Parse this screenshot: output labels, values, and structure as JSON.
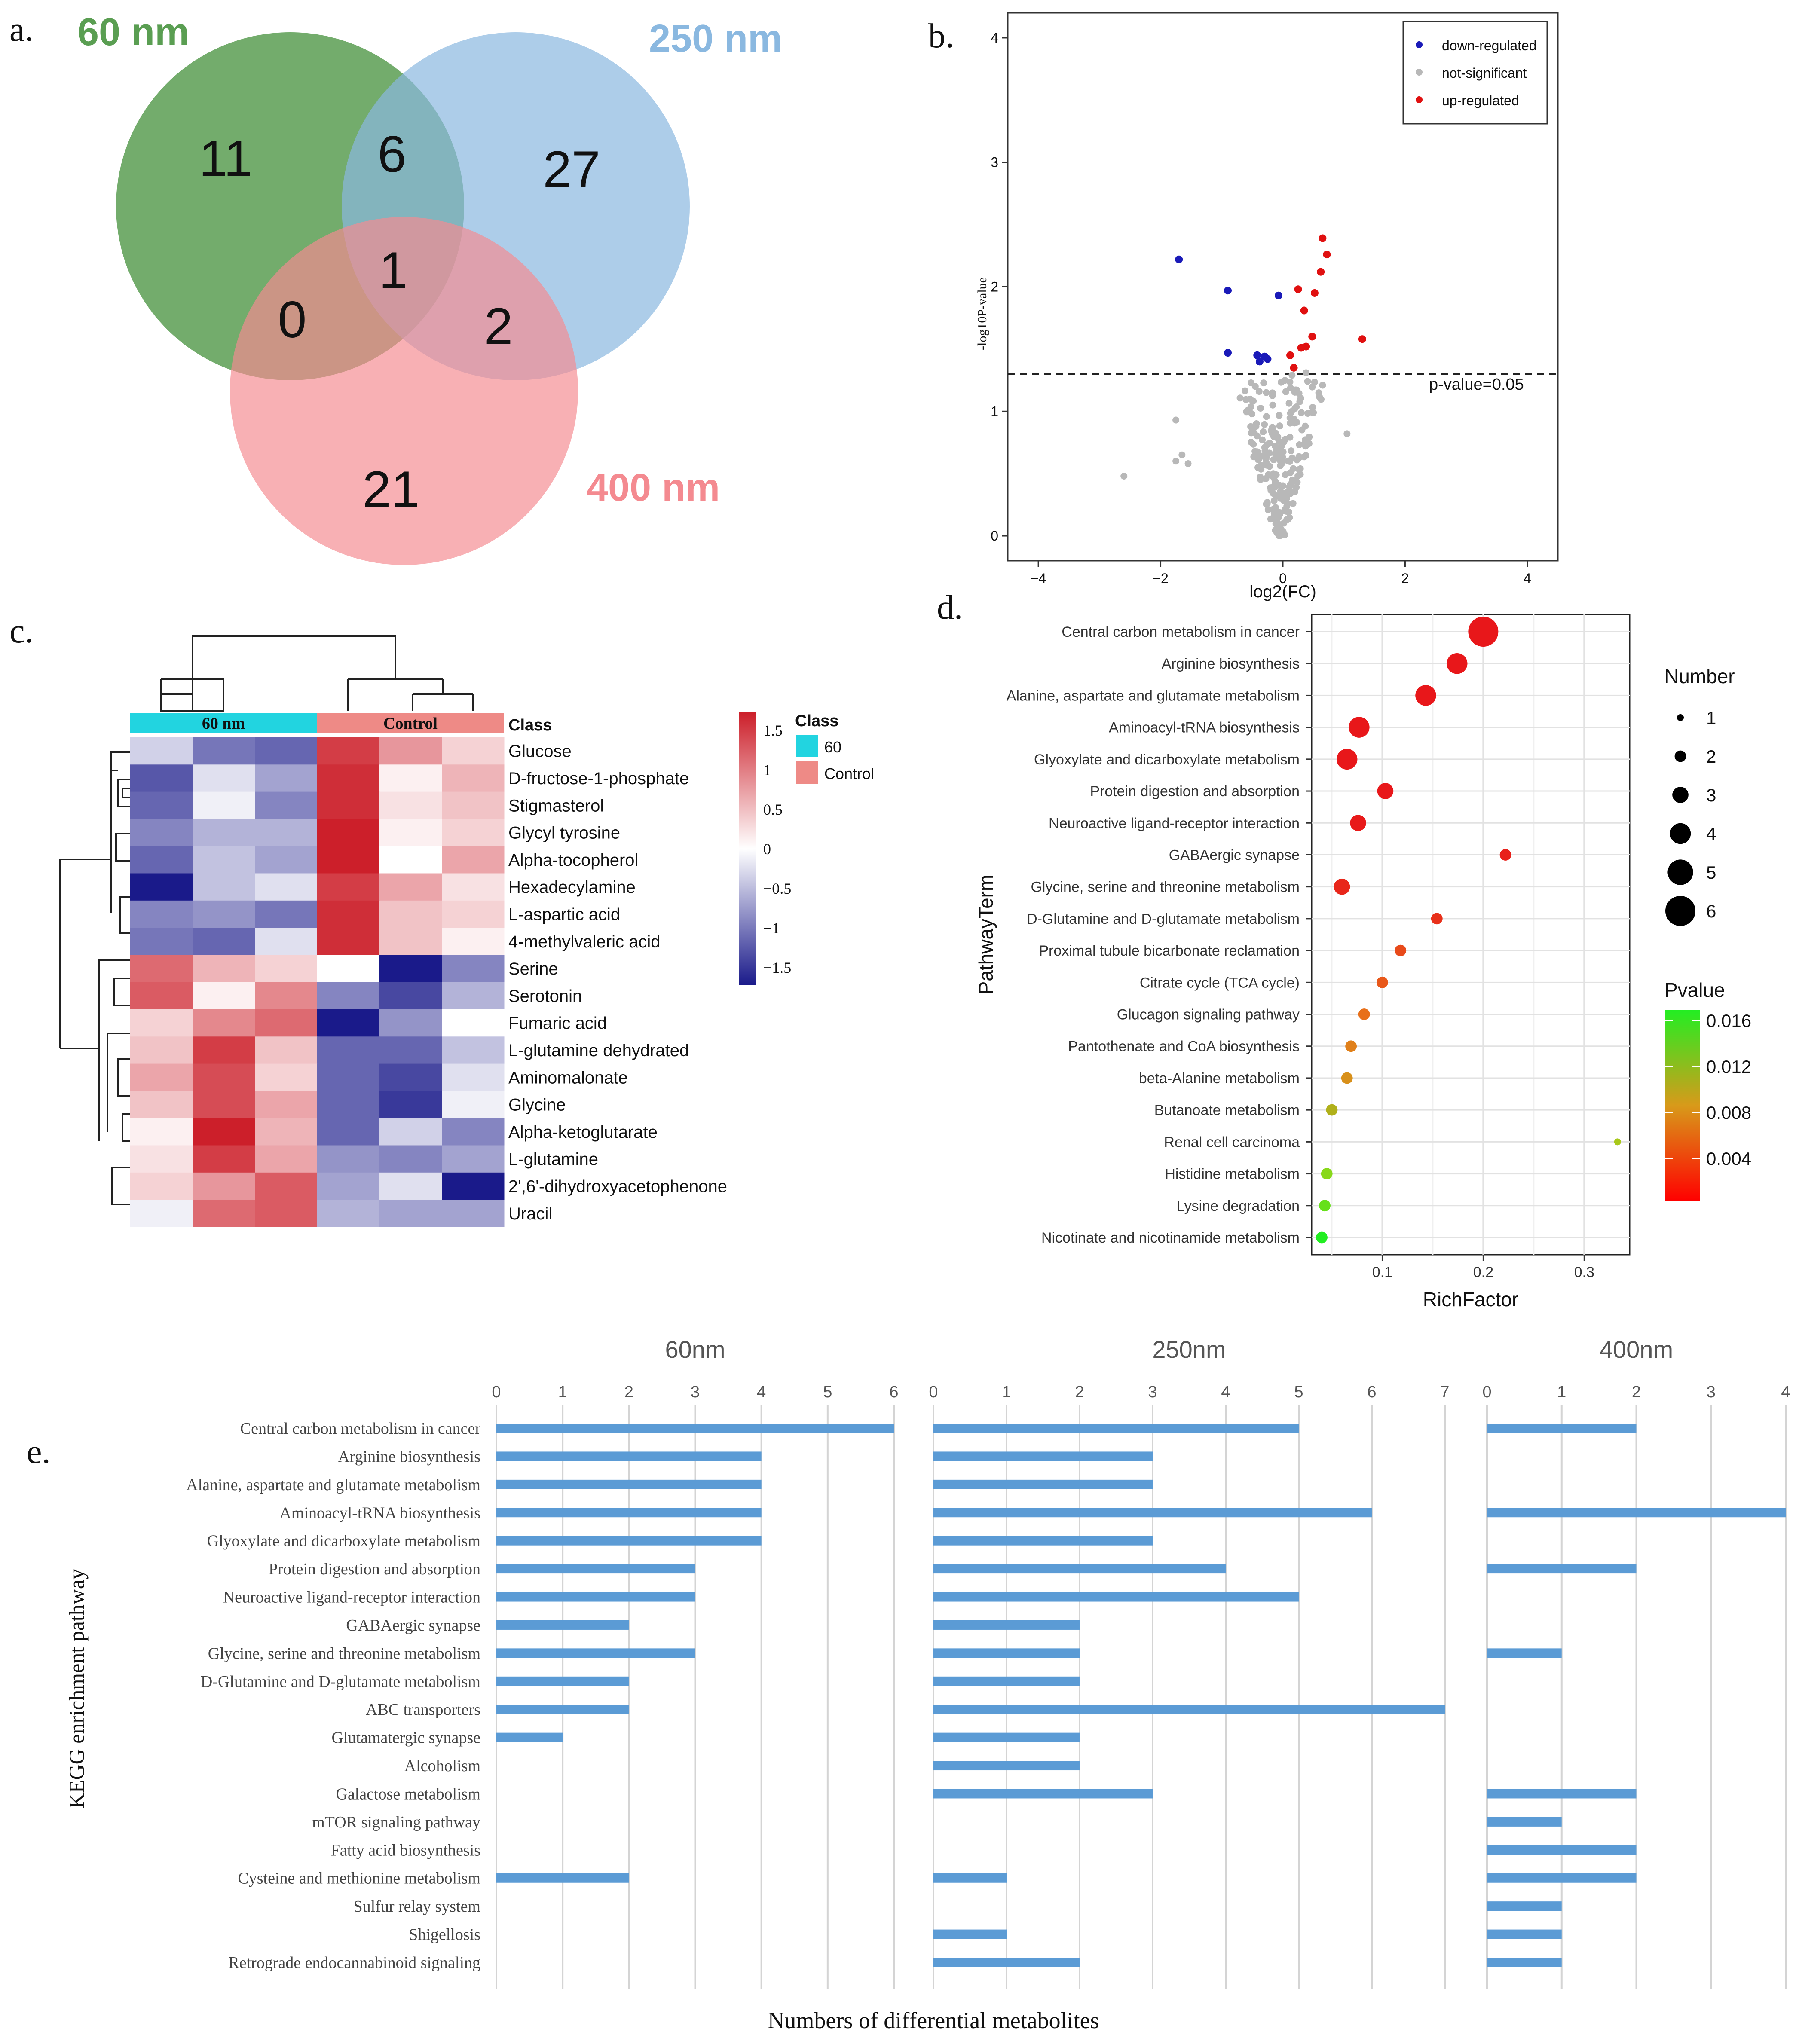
{
  "panels": {
    "a": {
      "label": "a.",
      "sets": [
        {
          "name": "60 nm",
          "color": "#5a9e52"
        },
        {
          "name": "250 nm",
          "color": "#8ab8e0"
        },
        {
          "name": "400 nm",
          "color": "#f48a90"
        }
      ],
      "counts": {
        "only60": "11",
        "ab": "6",
        "only250": "27",
        "abc": "1",
        "ac": "0",
        "bc": "2",
        "only400": "21"
      }
    },
    "b": {
      "label": "b."
    },
    "c": {
      "label": "c."
    },
    "d": {
      "label": "d."
    },
    "e": {
      "label": "e."
    }
  },
  "chart_data": [
    {
      "type": "scatter",
      "panel": "b",
      "xlabel": "log2(FC)",
      "ylabel": "-log10P-value",
      "xlim": [
        -4.5,
        4.5
      ],
      "ylim": [
        -0.2,
        4.2
      ],
      "xticks": [
        -4,
        -2,
        0,
        2,
        4
      ],
      "yticks": [
        0,
        1,
        2,
        3,
        4
      ],
      "threshold": {
        "y": 1.3,
        "label": "p-value=0.05"
      },
      "legend": {
        "position": "top-right",
        "entries": [
          "down-regulated",
          "not-significant",
          "up-regulated"
        ]
      },
      "colors": {
        "down-regulated": "#1a1ab8",
        "not-significant": "#b8b8b8",
        "up-regulated": "#e01010"
      },
      "series": [
        {
          "name": "down-regulated",
          "points": [
            [
              -1.7,
              2.22
            ],
            [
              -0.9,
              1.97
            ],
            [
              -0.07,
              1.93
            ],
            [
              -0.9,
              1.47
            ],
            [
              -0.42,
              1.45
            ],
            [
              -0.38,
              1.4
            ],
            [
              -0.3,
              1.44
            ],
            [
              -0.25,
              1.42
            ]
          ]
        },
        {
          "name": "up-regulated",
          "points": [
            [
              0.65,
              2.39
            ],
            [
              0.72,
              2.26
            ],
            [
              0.62,
              2.12
            ],
            [
              0.25,
              1.98
            ],
            [
              0.52,
              1.95
            ],
            [
              0.35,
              1.81
            ],
            [
              0.48,
              1.6
            ],
            [
              1.3,
              1.58
            ],
            [
              0.38,
              1.52
            ],
            [
              0.3,
              1.51
            ],
            [
              0.12,
              1.45
            ],
            [
              0.18,
              1.35
            ]
          ]
        }
      ]
    },
    {
      "type": "heatmap",
      "panel": "c",
      "columns_groups": [
        {
          "name": "60 nm",
          "n": 3,
          "color": "#22d4e0"
        },
        {
          "name": "Control",
          "n": 3,
          "color": "#ee8a86"
        }
      ],
      "class_header": "Class",
      "rows": [
        "Glucose",
        "D-fructose-1-phosphate",
        "Stigmasterol",
        "Glycyl tyrosine",
        "Alpha-tocopherol",
        "Hexadecylamine",
        "L-aspartic acid",
        "4-methylvaleric acid",
        "Serine",
        "Serotonin",
        "Fumaric acid",
        "L-glutamine dehydrated",
        "Aminomalonate",
        "Glycine",
        "Alpha-ketoglutarate",
        "L-glutamine",
        "2',6'-dihydroxyacetophenone",
        "Uracil"
      ],
      "values": [
        [
          -0.3,
          -0.9,
          -1.0,
          1.3,
          0.7,
          0.3
        ],
        [
          -1.1,
          -0.2,
          -0.6,
          1.4,
          0.1,
          0.5
        ],
        [
          -1.0,
          -0.1,
          -0.8,
          1.4,
          0.2,
          0.4
        ],
        [
          -0.8,
          -0.5,
          -0.5,
          1.6,
          0.1,
          0.3
        ],
        [
          -1.0,
          -0.4,
          -0.6,
          1.5,
          0.0,
          0.6
        ],
        [
          -1.6,
          -0.4,
          -0.2,
          1.3,
          0.6,
          0.2
        ],
        [
          -0.8,
          -0.7,
          -0.9,
          1.4,
          0.4,
          0.3
        ],
        [
          -0.9,
          -1.0,
          -0.2,
          1.4,
          0.4,
          0.1
        ],
        [
          1.0,
          0.5,
          0.3,
          0.0,
          -1.6,
          -0.8
        ],
        [
          1.1,
          0.1,
          0.8,
          -0.8,
          -1.2,
          -0.5
        ],
        [
          0.3,
          0.8,
          1.0,
          -1.6,
          -0.7,
          0.0
        ],
        [
          0.4,
          1.3,
          0.4,
          -1.0,
          -1.0,
          -0.4
        ],
        [
          0.6,
          1.2,
          0.3,
          -1.0,
          -1.2,
          -0.2
        ],
        [
          0.4,
          1.2,
          0.6,
          -1.0,
          -1.3,
          -0.1
        ],
        [
          0.1,
          1.5,
          0.5,
          -1.0,
          -0.3,
          -0.8
        ],
        [
          0.2,
          1.3,
          0.6,
          -0.7,
          -0.8,
          -0.6
        ],
        [
          0.3,
          0.7,
          1.1,
          -0.6,
          -0.2,
          -1.5
        ],
        [
          -0.1,
          1.0,
          1.1,
          -0.5,
          -0.6,
          -0.6
        ]
      ],
      "color_scale": {
        "min": -1.5,
        "max": 1.5,
        "ticks": [
          "1.5",
          "1",
          "0.5",
          "0",
          "−0.5",
          "−1",
          "−1.5"
        ],
        "low": "#1a1a8a",
        "mid": "#ffffff",
        "high": "#cc1f2a"
      },
      "legend_class": {
        "title": "Class",
        "entries": [
          {
            "name": "60",
            "color": "#22d4e0"
          },
          {
            "name": "Control",
            "color": "#ee8a86"
          }
        ]
      }
    },
    {
      "type": "scatter",
      "panel": "d",
      "xlabel": "RichFactor",
      "ylabel": "PathwayTerm",
      "xticks": [
        "0.1",
        "0.2",
        "0.3"
      ],
      "xlim": [
        0.03,
        0.345
      ],
      "size_legend": {
        "title": "Number",
        "values": [
          "1",
          "2",
          "3",
          "4",
          "5",
          "6"
        ]
      },
      "color_legend": {
        "title": "Pvalue",
        "ticks": [
          "0.016",
          "0.012",
          "0.008",
          "0.004"
        ],
        "low": "#ff0000",
        "high": "#22ee22"
      },
      "points": [
        {
          "term": "Central carbon metabolism in cancer",
          "rich": 0.2,
          "number": 6,
          "color": "#e8171a"
        },
        {
          "term": "Arginine biosynthesis",
          "rich": 0.174,
          "number": 4,
          "color": "#e8171a"
        },
        {
          "term": "Alanine, aspartate and glutamate metabolism",
          "rich": 0.143,
          "number": 4,
          "color": "#e8171a"
        },
        {
          "term": "Aminoacyl-tRNA biosynthesis",
          "rich": 0.077,
          "number": 4,
          "color": "#e8171a"
        },
        {
          "term": "Glyoxylate and dicarboxylate metabolism",
          "rich": 0.065,
          "number": 4,
          "color": "#e8171a"
        },
        {
          "term": "Protein digestion and absorption",
          "rich": 0.103,
          "number": 3,
          "color": "#e8171a"
        },
        {
          "term": "Neuroactive ligand-receptor interaction",
          "rich": 0.076,
          "number": 3,
          "color": "#e81a1a"
        },
        {
          "term": "GABAergic synapse",
          "rich": 0.222,
          "number": 2,
          "color": "#e8201a"
        },
        {
          "term": "Glycine, serine and threonine metabolism",
          "rich": 0.06,
          "number": 3,
          "color": "#e8261a"
        },
        {
          "term": "D-Glutamine and D-glutamate metabolism",
          "rich": 0.154,
          "number": 2,
          "color": "#e8301a"
        },
        {
          "term": "Proximal tubule bicarbonate reclamation",
          "rich": 0.118,
          "number": 2,
          "color": "#e84a1a"
        },
        {
          "term": "Citrate cycle (TCA cycle)",
          "rich": 0.1,
          "number": 2,
          "color": "#e8581a"
        },
        {
          "term": "Glucagon signaling pathway",
          "rich": 0.082,
          "number": 2,
          "color": "#e8701a"
        },
        {
          "term": "Pantothenate and CoA biosynthesis",
          "rich": 0.069,
          "number": 2,
          "color": "#e0801a"
        },
        {
          "term": "beta-Alanine metabolism",
          "rich": 0.065,
          "number": 2,
          "color": "#d8901a"
        },
        {
          "term": "Butanoate metabolism",
          "rich": 0.05,
          "number": 2,
          "color": "#b0b01a"
        },
        {
          "term": "Renal cell carcinoma",
          "rich": 0.333,
          "number": 1,
          "color": "#a8c81a"
        },
        {
          "term": "Histidine metabolism",
          "rich": 0.045,
          "number": 2,
          "color": "#88d81a"
        },
        {
          "term": "Lysine degradation",
          "rich": 0.043,
          "number": 2,
          "color": "#66e01a"
        },
        {
          "term": "Nicotinate and nicotinamide metabolism",
          "rich": 0.04,
          "number": 2,
          "color": "#22ee22"
        }
      ]
    },
    {
      "type": "bar",
      "panel": "e",
      "orientation": "horizontal",
      "ylabel": "KEGG enrichment pathway",
      "xlabel": "Numbers of differential metabolites",
      "bar_color": "#5b9bd5",
      "categories": [
        "Central carbon metabolism in cancer",
        "Arginine biosynthesis",
        "Alanine, aspartate and glutamate metabolism",
        "Aminoacyl-tRNA biosynthesis",
        "Glyoxylate and dicarboxylate metabolism",
        "Protein digestion and absorption",
        "Neuroactive ligand-receptor interaction",
        "GABAergic synapse",
        "Glycine, serine and threonine metabolism",
        "D-Glutamine and D-glutamate metabolism",
        "ABC transporters",
        "Glutamatergic synapse",
        "Alcoholism",
        "Galactose metabolism",
        "mTOR signaling pathway",
        "Fatty acid biosynthesis",
        "Cysteine and methionine metabolism",
        "Sulfur relay system",
        "Shigellosis",
        "Retrograde endocannabinoid signaling"
      ],
      "series": [
        {
          "name": "60nm",
          "max": 6,
          "ticks": [
            "0",
            "1",
            "2",
            "3",
            "4",
            "5",
            "6"
          ],
          "values": [
            6,
            4,
            4,
            4,
            4,
            3,
            3,
            2,
            3,
            2,
            2,
            1,
            0,
            0,
            0,
            0,
            2,
            0,
            0,
            0
          ]
        },
        {
          "name": "250nm",
          "max": 7,
          "ticks": [
            "0",
            "1",
            "2",
            "3",
            "4",
            "5",
            "6",
            "7"
          ],
          "values": [
            5,
            3,
            3,
            6,
            3,
            4,
            5,
            2,
            2,
            2,
            7,
            2,
            2,
            3,
            0,
            0,
            1,
            0,
            1,
            2
          ]
        },
        {
          "name": "400nm",
          "max": 4,
          "ticks": [
            "0",
            "1",
            "2",
            "3",
            "4"
          ],
          "values": [
            2,
            0,
            0,
            4,
            0,
            2,
            0,
            0,
            1,
            0,
            0,
            0,
            0,
            2,
            1,
            2,
            2,
            1,
            1,
            1
          ]
        }
      ]
    }
  ]
}
